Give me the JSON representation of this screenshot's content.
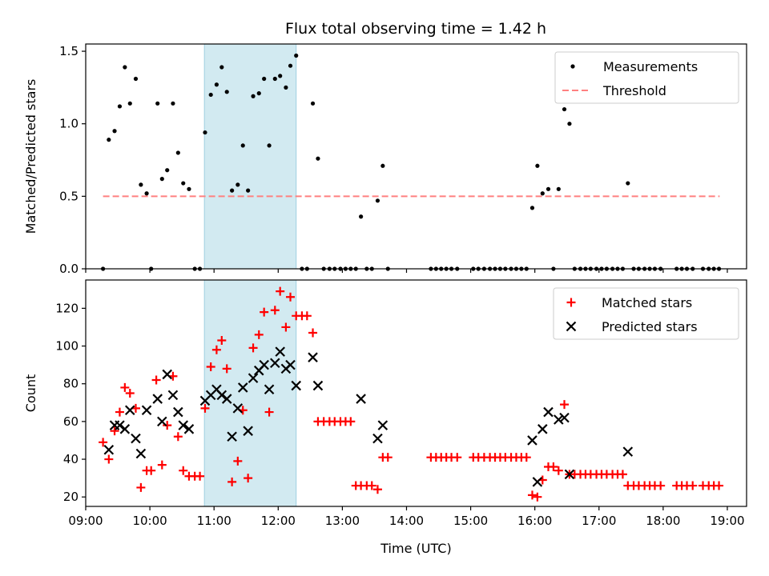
{
  "title": "Flux total observing time = 1.42 h",
  "chart_data": [
    {
      "type": "scatter",
      "ylabel": "Matched/Predicted stars",
      "xlim": [
        9.0,
        19.3
      ],
      "ylim": [
        0,
        1.55
      ],
      "yticks": [
        0.0,
        0.5,
        1.0,
        1.5
      ],
      "ytick_labels": [
        "0.0",
        "0.5",
        "1.0",
        "1.5"
      ],
      "legend_position": "upper-right",
      "highlight_span": [
        10.85,
        12.28
      ],
      "threshold": {
        "name": "Threshold",
        "value": 0.5,
        "x_range": [
          9.27,
          18.88
        ],
        "color": "#ff8080"
      },
      "series": [
        {
          "name": "Measurements",
          "color": "#000000",
          "marker": "dot",
          "points": [
            [
              9.27,
              0.0
            ],
            [
              9.36,
              0.89
            ],
            [
              9.45,
              0.95
            ],
            [
              9.53,
              1.12
            ],
            [
              9.61,
              1.39
            ],
            [
              9.69,
              1.14
            ],
            [
              9.78,
              1.31
            ],
            [
              9.86,
              0.58
            ],
            [
              9.95,
              0.52
            ],
            [
              10.02,
              0.0
            ],
            [
              10.12,
              1.14
            ],
            [
              10.19,
              0.62
            ],
            [
              10.27,
              0.68
            ],
            [
              10.36,
              1.14
            ],
            [
              10.44,
              0.8
            ],
            [
              10.52,
              0.59
            ],
            [
              10.61,
              0.55
            ],
            [
              10.7,
              0.0
            ],
            [
              10.78,
              0.0
            ],
            [
              10.86,
              0.94
            ],
            [
              10.95,
              1.2
            ],
            [
              11.04,
              1.27
            ],
            [
              11.12,
              1.39
            ],
            [
              11.2,
              1.22
            ],
            [
              11.28,
              0.54
            ],
            [
              11.37,
              0.58
            ],
            [
              11.45,
              0.85
            ],
            [
              11.53,
              0.54
            ],
            [
              11.61,
              1.19
            ],
            [
              11.7,
              1.21
            ],
            [
              11.78,
              1.31
            ],
            [
              11.86,
              0.85
            ],
            [
              11.95,
              1.31
            ],
            [
              12.03,
              1.33
            ],
            [
              12.12,
              1.25
            ],
            [
              12.19,
              1.4
            ],
            [
              12.28,
              1.47
            ],
            [
              12.37,
              0.0
            ],
            [
              12.45,
              0.0
            ],
            [
              12.54,
              1.14
            ],
            [
              12.62,
              0.76
            ],
            [
              12.71,
              0.0
            ],
            [
              12.8,
              0.0
            ],
            [
              12.88,
              0.0
            ],
            [
              12.97,
              0.0
            ],
            [
              13.05,
              0.0
            ],
            [
              13.13,
              0.0
            ],
            [
              13.21,
              0.0
            ],
            [
              13.29,
              0.36
            ],
            [
              13.38,
              0.0
            ],
            [
              13.46,
              0.0
            ],
            [
              13.55,
              0.47
            ],
            [
              13.63,
              0.71
            ],
            [
              13.71,
              0.0
            ],
            [
              14.38,
              0.0
            ],
            [
              14.46,
              0.0
            ],
            [
              14.54,
              0.0
            ],
            [
              14.62,
              0.0
            ],
            [
              14.7,
              0.0
            ],
            [
              14.79,
              0.0
            ],
            [
              15.04,
              0.0
            ],
            [
              15.12,
              0.0
            ],
            [
              15.21,
              0.0
            ],
            [
              15.3,
              0.0
            ],
            [
              15.38,
              0.0
            ],
            [
              15.46,
              0.0
            ],
            [
              15.54,
              0.0
            ],
            [
              15.63,
              0.0
            ],
            [
              15.71,
              0.0
            ],
            [
              15.79,
              0.0
            ],
            [
              15.87,
              0.0
            ],
            [
              15.96,
              0.42
            ],
            [
              16.04,
              0.71
            ],
            [
              16.12,
              0.52
            ],
            [
              16.21,
              0.55
            ],
            [
              16.29,
              0.0
            ],
            [
              16.37,
              0.55
            ],
            [
              16.46,
              1.1
            ],
            [
              16.54,
              1.0
            ],
            [
              16.62,
              0.0
            ],
            [
              16.71,
              0.0
            ],
            [
              16.79,
              0.0
            ],
            [
              16.87,
              0.0
            ],
            [
              16.96,
              0.0
            ],
            [
              17.04,
              0.0
            ],
            [
              17.12,
              0.0
            ],
            [
              17.21,
              0.0
            ],
            [
              17.29,
              0.0
            ],
            [
              17.37,
              0.0
            ],
            [
              17.45,
              0.59
            ],
            [
              17.54,
              0.0
            ],
            [
              17.62,
              0.0
            ],
            [
              17.71,
              0.0
            ],
            [
              17.79,
              0.0
            ],
            [
              17.87,
              0.0
            ],
            [
              17.96,
              0.0
            ],
            [
              18.21,
              0.0
            ],
            [
              18.29,
              0.0
            ],
            [
              18.37,
              0.0
            ],
            [
              18.46,
              0.0
            ],
            [
              18.62,
              0.0
            ],
            [
              18.71,
              0.0
            ],
            [
              18.79,
              0.0
            ],
            [
              18.87,
              0.0
            ]
          ]
        }
      ]
    },
    {
      "type": "scatter",
      "xlabel": "Time (UTC)",
      "ylabel": "Count",
      "xlim": [
        9.0,
        19.3
      ],
      "ylim": [
        15,
        135
      ],
      "xticks": [
        9,
        10,
        11,
        12,
        13,
        14,
        15,
        16,
        17,
        18,
        19
      ],
      "xtick_labels": [
        "09:00",
        "10:00",
        "11:00",
        "12:00",
        "13:00",
        "14:00",
        "15:00",
        "16:00",
        "17:00",
        "18:00",
        "19:00"
      ],
      "yticks": [
        20,
        40,
        60,
        80,
        100,
        120
      ],
      "ytick_labels": [
        "20",
        "40",
        "60",
        "80",
        "100",
        "120"
      ],
      "legend_position": "upper-right",
      "highlight_span": [
        10.85,
        12.28
      ],
      "series": [
        {
          "name": "Matched stars",
          "color": "#ff0000",
          "marker": "plus",
          "points": [
            [
              9.27,
              49
            ],
            [
              9.36,
              40
            ],
            [
              9.45,
              55
            ],
            [
              9.53,
              65
            ],
            [
              9.61,
              78
            ],
            [
              9.69,
              75
            ],
            [
              9.78,
              67
            ],
            [
              9.86,
              25
            ],
            [
              9.95,
              34
            ],
            [
              10.02,
              34
            ],
            [
              10.1,
              82
            ],
            [
              10.19,
              37
            ],
            [
              10.27,
              58
            ],
            [
              10.36,
              84
            ],
            [
              10.44,
              52
            ],
            [
              10.52,
              34
            ],
            [
              10.61,
              31
            ],
            [
              10.7,
              31
            ],
            [
              10.78,
              31
            ],
            [
              10.86,
              67
            ],
            [
              10.95,
              89
            ],
            [
              11.04,
              98
            ],
            [
              11.12,
              103
            ],
            [
              11.2,
              88
            ],
            [
              11.28,
              28
            ],
            [
              11.37,
              39
            ],
            [
              11.45,
              66
            ],
            [
              11.53,
              30
            ],
            [
              11.61,
              99
            ],
            [
              11.7,
              106
            ],
            [
              11.78,
              118
            ],
            [
              11.86,
              65
            ],
            [
              11.95,
              119
            ],
            [
              12.03,
              129
            ],
            [
              12.12,
              110
            ],
            [
              12.19,
              126
            ],
            [
              12.28,
              116
            ],
            [
              12.37,
              116
            ],
            [
              12.45,
              116
            ],
            [
              12.54,
              107
            ],
            [
              12.62,
              60
            ],
            [
              12.71,
              60
            ],
            [
              12.8,
              60
            ],
            [
              12.88,
              60
            ],
            [
              12.97,
              60
            ],
            [
              13.05,
              60
            ],
            [
              13.13,
              60
            ],
            [
              13.21,
              26
            ],
            [
              13.29,
              26
            ],
            [
              13.38,
              26
            ],
            [
              13.46,
              26
            ],
            [
              13.55,
              24
            ],
            [
              13.63,
              41
            ],
            [
              13.71,
              41
            ],
            [
              14.38,
              41
            ],
            [
              14.46,
              41
            ],
            [
              14.54,
              41
            ],
            [
              14.62,
              41
            ],
            [
              14.7,
              41
            ],
            [
              14.79,
              41
            ],
            [
              15.04,
              41
            ],
            [
              15.12,
              41
            ],
            [
              15.21,
              41
            ],
            [
              15.3,
              41
            ],
            [
              15.38,
              41
            ],
            [
              15.46,
              41
            ],
            [
              15.54,
              41
            ],
            [
              15.63,
              41
            ],
            [
              15.71,
              41
            ],
            [
              15.79,
              41
            ],
            [
              15.87,
              41
            ],
            [
              15.96,
              21
            ],
            [
              16.04,
              20
            ],
            [
              16.12,
              29
            ],
            [
              16.21,
              36
            ],
            [
              16.29,
              36
            ],
            [
              16.37,
              34
            ],
            [
              16.46,
              69
            ],
            [
              16.54,
              32
            ],
            [
              16.62,
              32
            ],
            [
              16.71,
              32
            ],
            [
              16.79,
              32
            ],
            [
              16.87,
              32
            ],
            [
              16.96,
              32
            ],
            [
              17.04,
              32
            ],
            [
              17.12,
              32
            ],
            [
              17.21,
              32
            ],
            [
              17.29,
              32
            ],
            [
              17.37,
              32
            ],
            [
              17.45,
              26
            ],
            [
              17.54,
              26
            ],
            [
              17.62,
              26
            ],
            [
              17.71,
              26
            ],
            [
              17.79,
              26
            ],
            [
              17.87,
              26
            ],
            [
              17.96,
              26
            ],
            [
              18.21,
              26
            ],
            [
              18.29,
              26
            ],
            [
              18.37,
              26
            ],
            [
              18.46,
              26
            ],
            [
              18.62,
              26
            ],
            [
              18.71,
              26
            ],
            [
              18.79,
              26
            ],
            [
              18.87,
              26
            ]
          ]
        },
        {
          "name": "Predicted stars",
          "color": "#000000",
          "marker": "x",
          "points": [
            [
              9.36,
              45
            ],
            [
              9.45,
              58
            ],
            [
              9.53,
              58
            ],
            [
              9.61,
              56
            ],
            [
              9.69,
              66
            ],
            [
              9.78,
              51
            ],
            [
              9.86,
              43
            ],
            [
              9.95,
              66
            ],
            [
              10.12,
              72
            ],
            [
              10.19,
              60
            ],
            [
              10.27,
              85
            ],
            [
              10.36,
              74
            ],
            [
              10.44,
              65
            ],
            [
              10.52,
              58
            ],
            [
              10.61,
              56
            ],
            [
              10.86,
              71
            ],
            [
              10.95,
              74
            ],
            [
              11.04,
              77
            ],
            [
              11.12,
              74
            ],
            [
              11.2,
              72
            ],
            [
              11.28,
              52
            ],
            [
              11.37,
              67
            ],
            [
              11.45,
              78
            ],
            [
              11.53,
              55
            ],
            [
              11.61,
              83
            ],
            [
              11.7,
              87
            ],
            [
              11.78,
              90
            ],
            [
              11.86,
              77
            ],
            [
              11.95,
              91
            ],
            [
              12.03,
              97
            ],
            [
              12.12,
              88
            ],
            [
              12.19,
              90
            ],
            [
              12.28,
              79
            ],
            [
              12.54,
              94
            ],
            [
              12.62,
              79
            ],
            [
              13.29,
              72
            ],
            [
              13.55,
              51
            ],
            [
              13.63,
              58
            ],
            [
              15.96,
              50
            ],
            [
              16.04,
              28
            ],
            [
              16.12,
              56
            ],
            [
              16.21,
              65
            ],
            [
              16.37,
              61
            ],
            [
              16.46,
              62
            ],
            [
              16.54,
              32
            ],
            [
              17.45,
              44
            ]
          ]
        }
      ]
    }
  ]
}
